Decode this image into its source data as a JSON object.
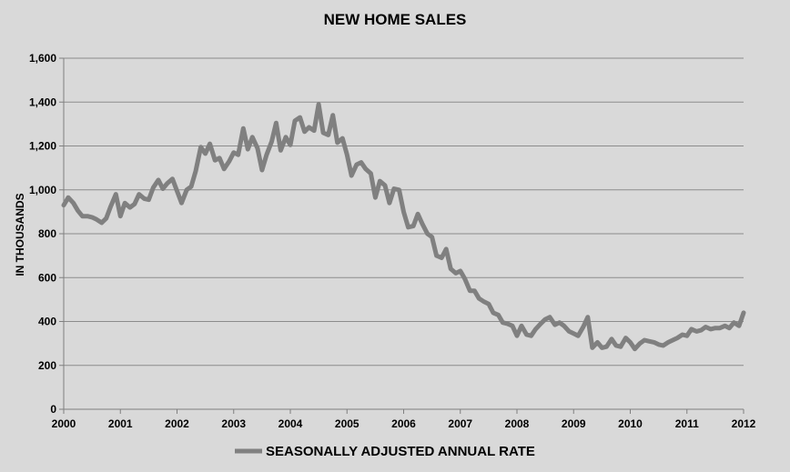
{
  "chart_data": {
    "type": "line",
    "title": "NEW HOME SALES",
    "xlabel": "",
    "ylabel": "IN THOUSANDS",
    "xlim": [
      2000,
      2012
    ],
    "ylim": [
      0,
      1600
    ],
    "x_ticks": [
      "2000",
      "2001",
      "2002",
      "2003",
      "2004",
      "2005",
      "2006",
      "2007",
      "2008",
      "2009",
      "2010",
      "2011",
      "2012"
    ],
    "y_ticks": [
      "0",
      "200",
      "400",
      "600",
      "800",
      "1,000",
      "1,200",
      "1,400",
      "1,600"
    ],
    "y_tick_values": [
      0,
      200,
      400,
      600,
      800,
      1000,
      1200,
      1400,
      1600
    ],
    "grid": true,
    "legend_position": "bottom",
    "series_color": "#808080",
    "series": [
      {
        "name": "SEASONALLY ADJUSTED ANNUAL RATE",
        "x": [
          2000.0,
          2000.08,
          2000.17,
          2000.25,
          2000.33,
          2000.42,
          2000.5,
          2000.58,
          2000.67,
          2000.75,
          2000.83,
          2000.92,
          2001.0,
          2001.08,
          2001.17,
          2001.25,
          2001.33,
          2001.42,
          2001.5,
          2001.58,
          2001.67,
          2001.75,
          2001.83,
          2001.92,
          2002.0,
          2002.08,
          2002.17,
          2002.25,
          2002.33,
          2002.42,
          2002.5,
          2002.58,
          2002.67,
          2002.75,
          2002.83,
          2002.92,
          2003.0,
          2003.08,
          2003.17,
          2003.25,
          2003.33,
          2003.42,
          2003.5,
          2003.58,
          2003.67,
          2003.75,
          2003.83,
          2003.92,
          2004.0,
          2004.08,
          2004.17,
          2004.25,
          2004.33,
          2004.42,
          2004.5,
          2004.58,
          2004.67,
          2004.75,
          2004.83,
          2004.92,
          2005.0,
          2005.08,
          2005.17,
          2005.25,
          2005.33,
          2005.42,
          2005.5,
          2005.58,
          2005.67,
          2005.75,
          2005.83,
          2005.92,
          2006.0,
          2006.08,
          2006.17,
          2006.25,
          2006.33,
          2006.42,
          2006.5,
          2006.58,
          2006.67,
          2006.75,
          2006.83,
          2006.92,
          2007.0,
          2007.08,
          2007.17,
          2007.25,
          2007.33,
          2007.42,
          2007.5,
          2007.58,
          2007.67,
          2007.75,
          2007.83,
          2007.92,
          2008.0,
          2008.08,
          2008.17,
          2008.25,
          2008.33,
          2008.42,
          2008.5,
          2008.58,
          2008.67,
          2008.75,
          2008.83,
          2008.92,
          2009.0,
          2009.08,
          2009.17,
          2009.25,
          2009.33,
          2009.42,
          2009.5,
          2009.58,
          2009.67,
          2009.75,
          2009.83,
          2009.92,
          2010.0,
          2010.08,
          2010.17,
          2010.25,
          2010.33,
          2010.42,
          2010.5,
          2010.58,
          2010.67,
          2010.75,
          2010.83,
          2010.92,
          2011.0,
          2011.08,
          2011.17,
          2011.25,
          2011.33,
          2011.42,
          2011.5,
          2011.58,
          2011.67,
          2011.75,
          2011.83,
          2011.92,
          2012.0
        ],
        "values": [
          930,
          965,
          940,
          905,
          880,
          880,
          875,
          865,
          850,
          870,
          925,
          980,
          880,
          940,
          920,
          935,
          980,
          960,
          955,
          1010,
          1045,
          1005,
          1030,
          1050,
          995,
          940,
          1000,
          1015,
          1085,
          1195,
          1165,
          1210,
          1135,
          1145,
          1095,
          1130,
          1170,
          1160,
          1280,
          1185,
          1240,
          1190,
          1090,
          1160,
          1220,
          1305,
          1180,
          1240,
          1205,
          1315,
          1330,
          1265,
          1285,
          1270,
          1390,
          1260,
          1250,
          1340,
          1215,
          1235,
          1160,
          1065,
          1115,
          1125,
          1095,
          1075,
          965,
          1040,
          1020,
          940,
          1005,
          1000,
          900,
          830,
          835,
          890,
          845,
          800,
          785,
          700,
          690,
          730,
          640,
          620,
          630,
          595,
          540,
          540,
          505,
          490,
          480,
          440,
          430,
          395,
          390,
          380,
          335,
          380,
          340,
          335,
          365,
          390,
          410,
          420,
          385,
          395,
          380,
          355,
          345,
          335,
          375,
          420,
          280,
          305,
          280,
          285,
          320,
          290,
          285,
          325,
          305,
          275,
          300,
          315,
          310,
          305,
          295,
          290,
          305,
          315,
          325,
          340,
          335,
          365,
          355,
          360,
          375,
          365,
          370,
          370,
          380,
          370,
          395,
          380,
          440
        ]
      }
    ]
  }
}
